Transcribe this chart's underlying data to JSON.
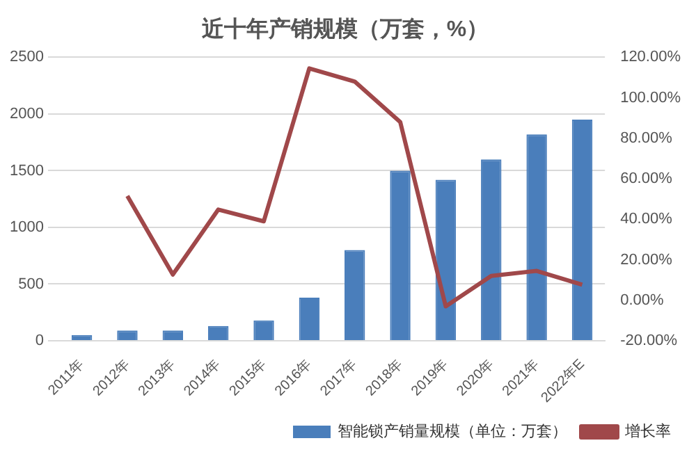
{
  "chart_data": {
    "type": "bar",
    "title": "近十年产销规模（万套，%）",
    "categories": [
      "2011年",
      "2012年",
      "2013年",
      "2014年",
      "2015年",
      "2016年",
      "2017年",
      "2018年",
      "2019年",
      "2020年",
      "2021年",
      "2022年E"
    ],
    "series": [
      {
        "name": "智能锁产销量规模（单位：万套）",
        "color": "#4a7ebb",
        "values": [
          50,
          90,
          90,
          130,
          180,
          380,
          800,
          1500,
          1420,
          1600,
          1820,
          1950
        ]
      },
      {
        "name": "增长率",
        "type": "line",
        "axis": "y2",
        "color": "#a0484a",
        "values": [
          null,
          51.5,
          12.7,
          44.8,
          39,
          114.5,
          108,
          88,
          -3,
          12,
          14.5,
          7.7
        ]
      }
    ],
    "ylim": [
      0,
      2500
    ],
    "yticks": [
      0,
      500,
      1000,
      1500,
      2000,
      2500
    ],
    "y2lim": [
      -20,
      120
    ],
    "y2ticks": [
      {
        "value": -20,
        "label": "-20.00%"
      },
      {
        "value": 0,
        "label": "0.00%"
      },
      {
        "value": 20,
        "label": "20.00%"
      },
      {
        "value": 40,
        "label": "40.00%"
      },
      {
        "value": 60,
        "label": "60.00%"
      },
      {
        "value": 80,
        "label": "80.00%"
      },
      {
        "value": 100,
        "label": "100.00%"
      },
      {
        "value": 120,
        "label": "120.00%"
      }
    ],
    "grid": "y",
    "legend": "bottom",
    "marker": "none"
  }
}
